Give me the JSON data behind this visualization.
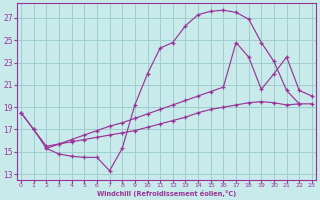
{
  "bg_color": "#c8eaea",
  "grid_color": "#9ecece",
  "line_color": "#993399",
  "xlim": [
    -0.3,
    23.3
  ],
  "ylim": [
    12.5,
    28.3
  ],
  "xticks": [
    0,
    1,
    2,
    3,
    4,
    5,
    6,
    7,
    8,
    9,
    10,
    11,
    12,
    13,
    14,
    15,
    16,
    17,
    18,
    19,
    20,
    21,
    22,
    23
  ],
  "yticks": [
    13,
    15,
    17,
    19,
    21,
    23,
    25,
    27
  ],
  "xlabel": "Windchill (Refroidissement éolien,°C)",
  "line1_x": [
    0,
    1,
    2,
    3,
    4,
    5,
    6,
    7,
    8,
    9,
    10,
    11,
    12,
    13,
    14,
    15,
    16,
    17,
    18,
    19,
    20,
    21,
    22
  ],
  "line1_y": [
    18.5,
    17.0,
    15.3,
    14.8,
    14.6,
    14.5,
    14.5,
    13.3,
    15.3,
    19.2,
    22.0,
    24.3,
    24.8,
    26.3,
    27.3,
    27.6,
    27.7,
    27.5,
    26.9,
    24.8,
    23.1,
    20.5,
    19.3
  ],
  "line2_x": [
    0,
    1,
    2,
    3,
    4,
    5,
    6,
    7,
    8,
    9,
    10,
    11,
    12,
    13,
    14,
    15,
    16,
    17,
    18,
    19,
    20,
    21,
    22,
    23
  ],
  "line2_y": [
    18.5,
    17.0,
    15.5,
    15.7,
    15.9,
    16.1,
    16.3,
    16.5,
    16.7,
    16.9,
    17.2,
    17.5,
    17.8,
    18.1,
    18.5,
    18.8,
    19.0,
    19.2,
    19.4,
    19.5,
    19.4,
    19.2,
    19.3,
    19.3
  ],
  "line3_x": [
    2,
    3,
    4,
    5,
    6,
    7,
    8,
    9,
    10,
    11,
    12,
    13,
    14,
    15,
    16,
    17,
    18,
    19,
    20,
    21,
    22,
    23
  ],
  "line3_y": [
    15.3,
    15.7,
    16.1,
    16.5,
    16.9,
    17.3,
    17.6,
    18.0,
    18.4,
    18.8,
    19.2,
    19.6,
    20.0,
    20.4,
    20.8,
    24.8,
    23.5,
    20.6,
    22.0,
    23.5,
    20.5,
    20.0
  ]
}
